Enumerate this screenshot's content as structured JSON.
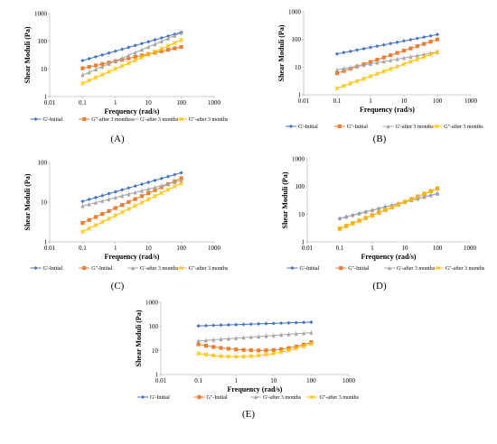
{
  "figure": {
    "colors": {
      "blue": "#4472c4",
      "orange": "#ed7d31",
      "gray": "#a5a5a5",
      "yellow": "#ffc000"
    },
    "panel_labels": [
      "(A)",
      "(B)",
      "(C)",
      "(D)",
      "(E)"
    ]
  },
  "chart_data": [
    {
      "type": "line",
      "panel": "(A)",
      "xlabel": "Frequency (rad/s)",
      "ylabel": "Shear Moduli (Pa)",
      "xscale": "log",
      "yscale": "log",
      "xlim": [
        0.01,
        1000
      ],
      "ylim": [
        1,
        1000
      ],
      "xticks": [
        "0.01",
        "0.1",
        "1",
        "10",
        "100",
        "1000"
      ],
      "yticks": [
        "1",
        "10",
        "100",
        "1000"
      ],
      "legend": "bottom",
      "series": [
        {
          "name": "G'-Initial",
          "color": "#4472c4",
          "marker": "diamond",
          "x": [
            0.1,
            100
          ],
          "y_start": 20,
          "y_end": 210
        },
        {
          "name": "G\"-after 3 months",
          "color": "#ed7d31",
          "marker": "square",
          "x": [
            0.1,
            100
          ],
          "y_start": 10.5,
          "y_end": 62
        },
        {
          "name": "G'-after 3 months",
          "color": "#a5a5a5",
          "marker": "triangle",
          "x": [
            0.1,
            100
          ],
          "y_start": 6,
          "y_end": 200
        },
        {
          "name": "G\"-after 3 months",
          "color": "#ffc000",
          "marker": "x",
          "x": [
            0.1,
            100
          ],
          "y_start": 3,
          "y_end": 110
        }
      ]
    },
    {
      "type": "line",
      "panel": "(B)",
      "xlabel": "Frequency (rad/s)",
      "ylabel": "Shear Moduli (Pa)",
      "xscale": "log",
      "yscale": "log",
      "xlim": [
        0.01,
        1000
      ],
      "ylim": [
        1,
        1000
      ],
      "xticks": [
        "0.01",
        "0.1",
        "1",
        "10",
        "100",
        "1000"
      ],
      "yticks": [
        "1",
        "10",
        "100",
        "1000"
      ],
      "legend": "bottom",
      "series": [
        {
          "name": "G'-Initial",
          "color": "#4472c4",
          "marker": "diamond",
          "x": [
            0.1,
            100
          ],
          "y_start": 30,
          "y_end": 150
        },
        {
          "name": "G\"-Initial",
          "color": "#ed7d31",
          "marker": "square",
          "x": [
            0.1,
            100
          ],
          "y_start": 6,
          "y_end": 100
        },
        {
          "name": "G'-after 3 months",
          "color": "#a5a5a5",
          "marker": "triangle",
          "x": [
            0.1,
            100
          ],
          "y_start": 8,
          "y_end": 35
        },
        {
          "name": "G\"-after 3 months",
          "color": "#ffc000",
          "marker": "x",
          "x": [
            0.1,
            100
          ],
          "y_start": 1.7,
          "y_end": 35
        }
      ]
    },
    {
      "type": "line",
      "panel": "(C)",
      "xlabel": "Frequency (rad/s)",
      "ylabel": "Shear Moduli (Pa)",
      "xscale": "log",
      "yscale": "log",
      "xlim": [
        0.01,
        1000
      ],
      "ylim": [
        1,
        100
      ],
      "xticks": [
        "0.01",
        "0.1",
        "1",
        "10",
        "100",
        "1000"
      ],
      "yticks": [
        "1",
        "10",
        "100"
      ],
      "legend": "bottom",
      "series": [
        {
          "name": "G'-Initial",
          "color": "#4472c4",
          "marker": "diamond",
          "x": [
            0.1,
            100
          ],
          "y_start": 10.5,
          "y_end": 55
        },
        {
          "name": "G\"-Initial",
          "color": "#ed7d31",
          "marker": "square",
          "x": [
            0.1,
            100
          ],
          "y_start": 3,
          "y_end": 40
        },
        {
          "name": "G'-after 3 months",
          "color": "#a5a5a5",
          "marker": "triangle",
          "x": [
            0.1,
            100
          ],
          "y_start": 8,
          "y_end": 35
        },
        {
          "name": "G\"-after 3 months",
          "color": "#ffc000",
          "marker": "x",
          "x": [
            0.1,
            100
          ],
          "y_start": 1.8,
          "y_end": 30
        }
      ]
    },
    {
      "type": "line",
      "panel": "(D)",
      "xlabel": "Frequency (rad/s)",
      "ylabel": "Shear Moduli (Pa)",
      "xscale": "log",
      "yscale": "log",
      "xlim": [
        0.01,
        1000
      ],
      "ylim": [
        1,
        1000
      ],
      "xticks": [
        "0.01",
        "0.1",
        "1",
        "10",
        "100",
        "1000"
      ],
      "yticks": [
        "1",
        "10",
        "100",
        "1000"
      ],
      "legend": "bottom",
      "series": [
        {
          "name": "G'-Initial",
          "color": "#4472c4",
          "marker": "diamond",
          "x": [
            0.1,
            100
          ],
          "y_start": 7,
          "y_end": 55
        },
        {
          "name": "G\"-Initial",
          "color": "#ed7d31",
          "marker": "square",
          "x": [
            0.1,
            100
          ],
          "y_start": 3,
          "y_end": 85
        },
        {
          "name": "G'-after 3 months",
          "color": "#a5a5a5",
          "marker": "triangle",
          "x": [
            0.1,
            100
          ],
          "y_start": 7,
          "y_end": 55
        },
        {
          "name": "G\"-after 3 months",
          "color": "#ffc000",
          "marker": "x",
          "x": [
            0.1,
            100
          ],
          "y_start": 3,
          "y_end": 85
        }
      ]
    },
    {
      "type": "line",
      "panel": "(E)",
      "xlabel": "Frequency (rad/s)",
      "ylabel": "Shear Moduli (Pa)",
      "xscale": "log",
      "yscale": "log",
      "xlim": [
        0.01,
        1000
      ],
      "ylim": [
        1,
        1000
      ],
      "xticks": [
        "0.01",
        "0.1",
        "1",
        "10",
        "100",
        "1000"
      ],
      "yticks": [
        "1",
        "10",
        "100",
        "1000"
      ],
      "legend": "bottom",
      "series": [
        {
          "name": "G'-Initial",
          "color": "#4472c4",
          "marker": "diamond",
          "x": [
            0.1,
            100
          ],
          "y_start": 105,
          "y_end": 150
        },
        {
          "name": "G\"-Initial",
          "color": "#ed7d31",
          "marker": "square",
          "x": [
            0.1,
            100
          ],
          "y_start": 18,
          "y_end": 22,
          "y_min": 10,
          "x_at_min": 5
        },
        {
          "name": "G'-after 3 months",
          "color": "#a5a5a5",
          "marker": "triangle",
          "x": [
            0.1,
            100
          ],
          "y_start": 25,
          "y_end": 55
        },
        {
          "name": "G\"-after 3 months",
          "color": "#ffc000",
          "marker": "x",
          "x": [
            0.1,
            100
          ],
          "y_start": 7.5,
          "y_end": 19,
          "y_min": 5.5,
          "x_at_min": 1
        }
      ]
    }
  ]
}
